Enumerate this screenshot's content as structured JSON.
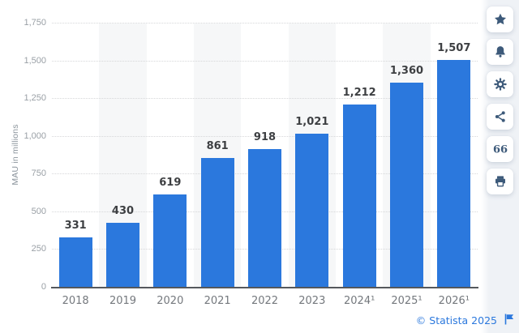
{
  "chart_data": {
    "type": "bar",
    "categories": [
      "2018",
      "2019",
      "2020",
      "2021",
      "2022",
      "2023",
      "2024¹",
      "2025¹",
      "2026¹"
    ],
    "values": [
      331,
      430,
      619,
      861,
      918,
      1021,
      1212,
      1360,
      1507
    ],
    "value_labels": [
      "331",
      "430",
      "619",
      "861",
      "918",
      "1,021",
      "1,212",
      "1,360",
      "1,507"
    ],
    "title": "",
    "xlabel": "",
    "ylabel": "MAU in millions",
    "ylim": [
      0,
      1750
    ],
    "ytick_step": 250,
    "yticks": [
      "0",
      "250",
      "500",
      "750",
      "1,000",
      "1,250",
      "1,500",
      "1,750"
    ],
    "grid": "horizontal-dotted",
    "legend": "none",
    "bar_color": "#2b78dd",
    "stripe_color": "#f6f7f8"
  },
  "sidebar": {
    "buttons": [
      {
        "name": "favorite",
        "icon": "star-icon"
      },
      {
        "name": "notifications",
        "icon": "bell-icon"
      },
      {
        "name": "settings",
        "icon": "gear-icon"
      },
      {
        "name": "share",
        "icon": "share-icon"
      },
      {
        "name": "cite",
        "icon": "quote-icon"
      },
      {
        "name": "print",
        "icon": "print-icon"
      }
    ],
    "icon_color": "#3d5a7a"
  },
  "footer": {
    "copyright": "© Statista 2025",
    "flag_icon": "flag-icon",
    "link_color": "#2b78dd"
  }
}
